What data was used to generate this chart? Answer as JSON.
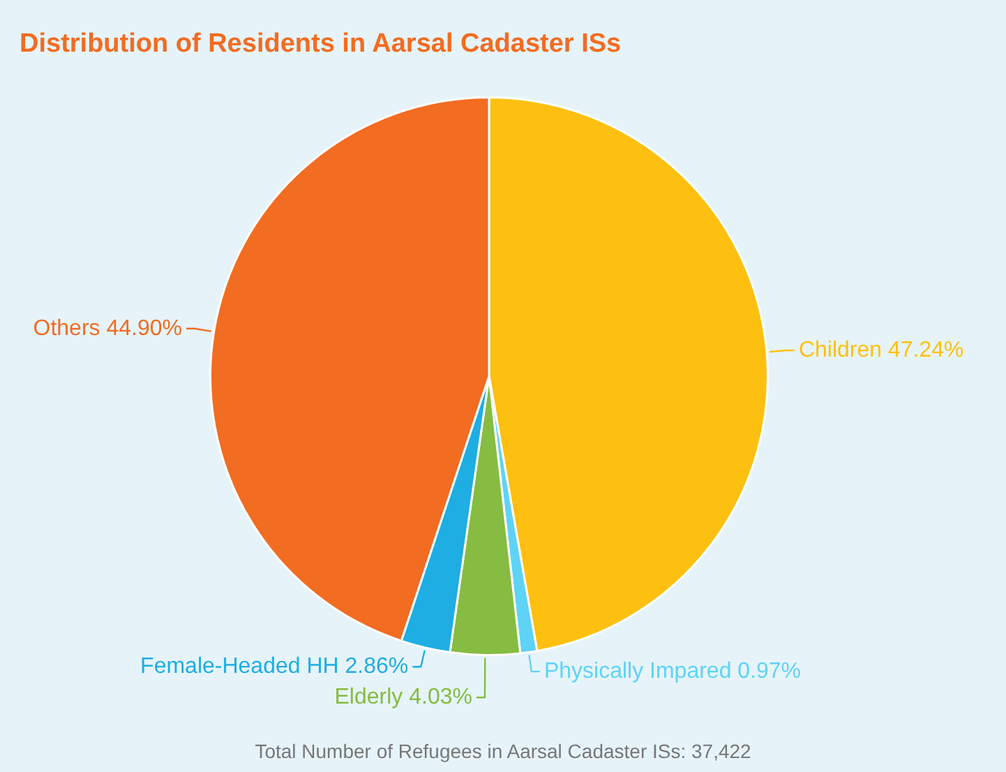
{
  "chart_data": {
    "type": "pie",
    "title": "Distribution of Residents in Aarsal Cadaster ISs",
    "categories": [
      "Children",
      "Physically Impared",
      "Elderly",
      "Female-Headed HH",
      "Others"
    ],
    "values": [
      47.24,
      0.97,
      4.03,
      2.86,
      44.9
    ],
    "value_labels": [
      "47.24%",
      "0.97%",
      "4.03%",
      "2.86%",
      "44.90%"
    ],
    "colors": [
      "#fdc010",
      "#5fd3f5",
      "#86bc41",
      "#1eaee3",
      "#f26c22"
    ],
    "legend": false,
    "annotations": [
      "Total Number of Refugees in Aarsal Cadaster ISs: 37,422"
    ]
  }
}
